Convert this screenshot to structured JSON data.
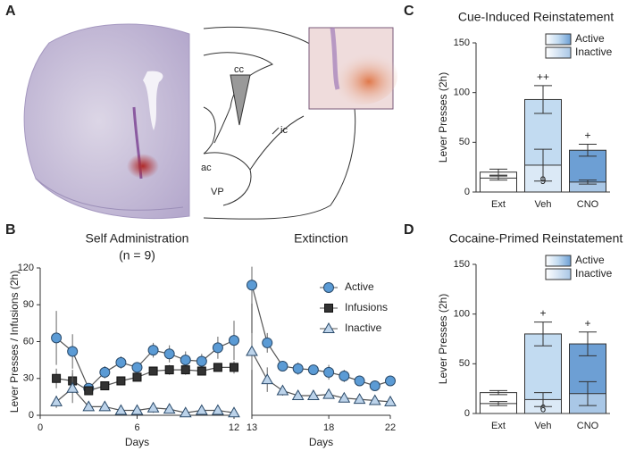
{
  "panel_labels": [
    "A",
    "B",
    "C",
    "D"
  ],
  "panel_a": {
    "atlas_labels": [
      "cc",
      "ic",
      "ac",
      "VP"
    ]
  },
  "chart_data": [
    {
      "type": "line",
      "title": "Self Administration",
      "subtitle": "(n = 9)",
      "x_label": "Days",
      "y_label": "Lever Presses / Infusions (2h)",
      "x": [
        1,
        2,
        3,
        4,
        5,
        6,
        7,
        8,
        9,
        10,
        11,
        12
      ],
      "xlim": [
        0,
        12
      ],
      "xticks": [
        0,
        6,
        12
      ],
      "ylim": [
        0,
        120
      ],
      "yticks": [
        0,
        30,
        60,
        90,
        120
      ],
      "legend": "right",
      "grid": false,
      "series": [
        {
          "name": "Active",
          "color": "#5b9bd5",
          "marker": "circle",
          "values": [
            63,
            52,
            22,
            35,
            43,
            39,
            53,
            50,
            45,
            44,
            55,
            61
          ],
          "errors": [
            22,
            14,
            3,
            5,
            5,
            3,
            6,
            7,
            7,
            6,
            9,
            16
          ]
        },
        {
          "name": "Infusions",
          "color": "#333333",
          "marker": "square",
          "values": [
            30,
            28,
            20,
            24,
            28,
            31,
            36,
            37,
            37,
            36,
            39,
            39
          ],
          "errors": [
            8,
            9,
            3,
            3,
            2,
            2,
            3,
            4,
            4,
            3,
            3,
            5
          ]
        },
        {
          "name": "Inactive",
          "color": "#bcd3ea",
          "marker": "triangle",
          "values": [
            11,
            22,
            7,
            7,
            4,
            4,
            6,
            5,
            2,
            4,
            4,
            2
          ],
          "errors": [
            5,
            12,
            2,
            2,
            1,
            2,
            4,
            3,
            1,
            1,
            1,
            1
          ]
        }
      ]
    },
    {
      "type": "line",
      "title": "Extinction",
      "x_label": "Days",
      "x": [
        13,
        14,
        15,
        16,
        17,
        18,
        19,
        20,
        21,
        22
      ],
      "xlim": [
        13,
        22
      ],
      "xticks": [
        13,
        18,
        22
      ],
      "ylim": [
        0,
        120
      ],
      "grid": false,
      "series": [
        {
          "color": "#5b9bd5",
          "marker": "circle",
          "values": [
            106,
            59,
            40,
            38,
            37,
            35,
            32,
            28,
            24,
            28
          ],
          "errors": [
            15,
            8,
            4,
            5,
            4,
            6,
            5,
            3,
            3,
            2
          ]
        },
        {
          "color": "#bcd3ea",
          "marker": "triangle",
          "values": [
            52,
            29,
            20,
            16,
            16,
            17,
            14,
            13,
            12,
            11
          ],
          "errors": [
            15,
            10,
            4,
            3,
            3,
            3,
            2,
            2,
            2,
            2
          ]
        }
      ]
    },
    {
      "type": "bar",
      "title": "Cue-Induced Reinstatement",
      "y_label": "Lever Presses (2h)",
      "categories": [
        "Ext",
        "Veh",
        "CNO"
      ],
      "ylim": [
        0,
        150
      ],
      "yticks": [
        0,
        50,
        100,
        150
      ],
      "legend": "upper right",
      "grid": false,
      "series": [
        {
          "name": "Active",
          "colors": [
            "#ffffff",
            "#c2dbf1",
            "#6d9fd4"
          ],
          "values": [
            20,
            93,
            42
          ],
          "errors": [
            3,
            14,
            6
          ]
        },
        {
          "name": "Inactive",
          "colors": [
            "#ffffff",
            "#dbe9f6",
            "#a9c7e6"
          ],
          "values": [
            14,
            27,
            10
          ],
          "errors": [
            2,
            16,
            2
          ]
        }
      ],
      "significance": [
        {
          "category": "Veh",
          "text": "++"
        },
        {
          "category": "CNO",
          "text": "+"
        }
      ],
      "n_labels": [
        {
          "category": "Veh",
          "text": "9"
        }
      ]
    },
    {
      "type": "bar",
      "title": "Cocaine-Primed Reinstatement",
      "y_label": "Lever Presses (2h)",
      "categories": [
        "Ext",
        "Veh",
        "CNO"
      ],
      "ylim": [
        0,
        150
      ],
      "yticks": [
        0,
        50,
        100,
        150
      ],
      "legend": "upper right",
      "grid": false,
      "series": [
        {
          "name": "Active",
          "colors": [
            "#ffffff",
            "#c2dbf1",
            "#6d9fd4"
          ],
          "values": [
            21,
            80,
            70
          ],
          "errors": [
            2,
            12,
            12
          ]
        },
        {
          "name": "Inactive",
          "colors": [
            "#ffffff",
            "#dbe9f6",
            "#a9c7e6"
          ],
          "values": [
            10,
            14,
            20
          ],
          "errors": [
            2,
            7,
            12
          ]
        }
      ],
      "significance": [
        {
          "category": "Veh",
          "text": "+"
        },
        {
          "category": "CNO",
          "text": "+"
        }
      ],
      "n_labels": [
        {
          "category": "Veh",
          "text": "6"
        }
      ]
    }
  ]
}
